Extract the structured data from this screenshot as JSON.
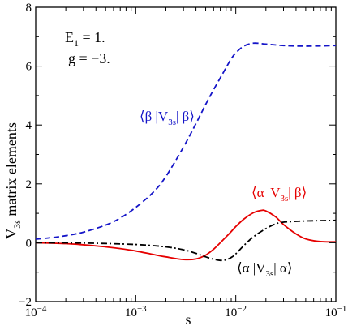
{
  "chart_data": {
    "type": "line",
    "x_scale": "log",
    "xlim": [
      0.0001,
      0.1
    ],
    "ylim": [
      -2,
      8
    ],
    "grid": false,
    "xlabel": "s",
    "ylabel": {
      "main": "V",
      "sub": "3s",
      "rest": " matrix elements"
    },
    "x_ticks": [
      {
        "value": 0.0001,
        "base": "10",
        "exp": "−4"
      },
      {
        "value": 0.001,
        "base": "10",
        "exp": "−3"
      },
      {
        "value": 0.01,
        "base": "10",
        "exp": "−2"
      },
      {
        "value": 0.1,
        "base": "10",
        "exp": "−1"
      }
    ],
    "y_ticks": [
      {
        "value": -2,
        "label": "−2"
      },
      {
        "value": 0,
        "label": "0"
      },
      {
        "value": 2,
        "label": "2"
      },
      {
        "value": 4,
        "label": "4"
      },
      {
        "value": 6,
        "label": "6"
      },
      {
        "value": 8,
        "label": "8"
      }
    ],
    "annotations": [
      {
        "main": "E",
        "sub": "1",
        "rest": " = 1."
      },
      {
        "main": "g = −3.",
        "sub": "",
        "rest": ""
      }
    ],
    "series": [
      {
        "name": "⟨β |V3s| β⟩",
        "label": {
          "pre": "⟨β |V",
          "sub": "3s",
          "post": "| β⟩"
        },
        "color": "#1414c8",
        "dash": "dashed",
        "x": [
          0.0001,
          0.00015,
          0.0002,
          0.0003,
          0.0005,
          0.0007,
          0.001,
          0.0015,
          0.002,
          0.003,
          0.004,
          0.005,
          0.006,
          0.007,
          0.008,
          0.009,
          0.01,
          0.012,
          0.015,
          0.02,
          0.03,
          0.05,
          0.1
        ],
        "y": [
          0.12,
          0.18,
          0.24,
          0.36,
          0.6,
          0.84,
          1.2,
          1.72,
          2.25,
          3.25,
          4.05,
          4.7,
          5.2,
          5.6,
          5.95,
          6.25,
          6.45,
          6.68,
          6.78,
          6.75,
          6.7,
          6.68,
          6.7
        ]
      },
      {
        "name": "⟨α |V3s| β⟩",
        "label": {
          "pre": "⟨α |V",
          "sub": "3s",
          "post": "| β⟩"
        },
        "color": "#e60000",
        "dash": "solid",
        "x": [
          0.0001,
          0.0002,
          0.0003,
          0.0005,
          0.0007,
          0.001,
          0.0015,
          0.002,
          0.003,
          0.004,
          0.005,
          0.006,
          0.007,
          0.008,
          0.009,
          0.01,
          0.012,
          0.015,
          0.018,
          0.02,
          0.025,
          0.03,
          0.04,
          0.05,
          0.07,
          0.1
        ],
        "y": [
          0.0,
          -0.03,
          -0.07,
          -0.14,
          -0.2,
          -0.28,
          -0.4,
          -0.48,
          -0.57,
          -0.55,
          -0.42,
          -0.22,
          0.0,
          0.2,
          0.38,
          0.55,
          0.8,
          1.02,
          1.1,
          1.08,
          0.88,
          0.62,
          0.3,
          0.13,
          0.04,
          0.03
        ]
      },
      {
        "name": "⟨α |V3s| α⟩",
        "label": {
          "pre": "⟨α |V",
          "sub": "3s",
          "post": "| α⟩"
        },
        "color": "#000000",
        "dash": "dashdot",
        "x": [
          0.0001,
          0.0003,
          0.001,
          0.002,
          0.003,
          0.004,
          0.005,
          0.006,
          0.007,
          0.008,
          0.009,
          0.01,
          0.012,
          0.015,
          0.02,
          0.025,
          0.03,
          0.05,
          0.1
        ],
        "y": [
          0.0,
          -0.01,
          -0.06,
          -0.14,
          -0.24,
          -0.36,
          -0.48,
          -0.56,
          -0.6,
          -0.58,
          -0.5,
          -0.38,
          -0.1,
          0.2,
          0.48,
          0.64,
          0.7,
          0.74,
          0.76
        ]
      }
    ]
  }
}
